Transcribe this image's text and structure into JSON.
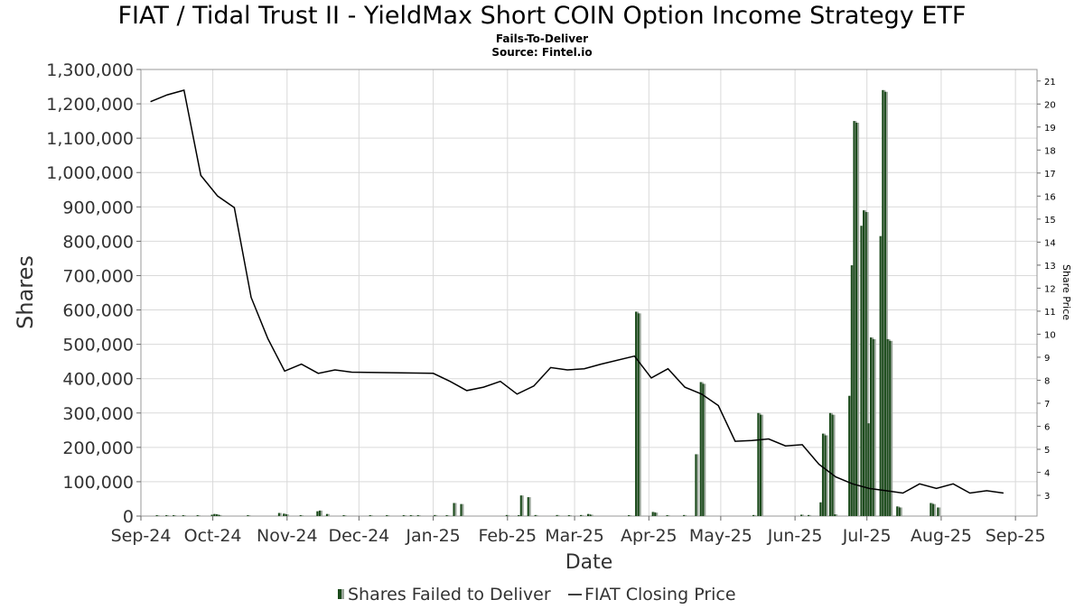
{
  "chart_data": {
    "type": "bar",
    "title": "FIAT / Tidal Trust II - YieldMax Short COIN Option Income Strategy ETF",
    "subtitle": "Fails-To-Deliver",
    "source": "Source: Fintel.io",
    "xlabel": "Date",
    "ylabel": "Shares",
    "y2label": "Share Price",
    "ylim": [
      0,
      1300000
    ],
    "y2lim": [
      2.1,
      21.5
    ],
    "xlim": [
      "2024-09-01",
      "2025-09-10"
    ],
    "x_ticks": [
      {
        "date": "2024-09-01",
        "label": "Sep-24"
      },
      {
        "date": "2024-10-01",
        "label": "Oct-24"
      },
      {
        "date": "2024-11-01",
        "label": "Nov-24"
      },
      {
        "date": "2024-12-01",
        "label": "Dec-24"
      },
      {
        "date": "2025-01-01",
        "label": "Jan-25"
      },
      {
        "date": "2025-02-01",
        "label": "Feb-25"
      },
      {
        "date": "2025-03-01",
        "label": "Mar-25"
      },
      {
        "date": "2025-04-01",
        "label": "Apr-25"
      },
      {
        "date": "2025-05-01",
        "label": "May-25"
      },
      {
        "date": "2025-06-01",
        "label": "Jun-25"
      },
      {
        "date": "2025-07-01",
        "label": "Jul-25"
      },
      {
        "date": "2025-08-01",
        "label": "Aug-25"
      },
      {
        "date": "2025-09-01",
        "label": "Sep-25"
      }
    ],
    "y_ticks": [
      {
        "value": 0,
        "label": "0"
      },
      {
        "value": 100000,
        "label": "100,000"
      },
      {
        "value": 200000,
        "label": "200,000"
      },
      {
        "value": 300000,
        "label": "300,000"
      },
      {
        "value": 400000,
        "label": "400,000"
      },
      {
        "value": 500000,
        "label": "500,000"
      },
      {
        "value": 600000,
        "label": "600,000"
      },
      {
        "value": 700000,
        "label": "700,000"
      },
      {
        "value": 800000,
        "label": "800,000"
      },
      {
        "value": 900000,
        "label": "900,000"
      },
      {
        "value": 1000000,
        "label": "1,000,000"
      },
      {
        "value": 1100000,
        "label": "1,100,000"
      },
      {
        "value": 1200000,
        "label": "1,200,000"
      },
      {
        "value": 1300000,
        "label": "1,300,000"
      }
    ],
    "y2_ticks": [
      {
        "value": 3,
        "label": "3"
      },
      {
        "value": 4,
        "label": "4"
      },
      {
        "value": 5,
        "label": "5"
      },
      {
        "value": 6,
        "label": "6"
      },
      {
        "value": 7,
        "label": "7"
      },
      {
        "value": 8,
        "label": "8"
      },
      {
        "value": 9,
        "label": "9"
      },
      {
        "value": 10,
        "label": "10"
      },
      {
        "value": 11,
        "label": "11"
      },
      {
        "value": 12,
        "label": "12"
      },
      {
        "value": 13,
        "label": "13"
      },
      {
        "value": 14,
        "label": "14"
      },
      {
        "value": 15,
        "label": "15"
      },
      {
        "value": 16,
        "label": "16"
      },
      {
        "value": 17,
        "label": "17"
      },
      {
        "value": 18,
        "label": "18"
      },
      {
        "value": 19,
        "label": "19"
      },
      {
        "value": 20,
        "label": "20"
      },
      {
        "value": 21,
        "label": "21"
      }
    ],
    "grid": true,
    "legend_position": "bottom",
    "colors": {
      "bars": "#1a4a1a",
      "bar_shadow": "#9aa59a",
      "price_line": "#000000",
      "grid": "#d9d9d9"
    },
    "series": [
      {
        "name": "Shares Failed to Deliver",
        "type": "bar",
        "points": [
          [
            "2024-09-08",
            2000
          ],
          [
            "2024-09-12",
            1500
          ],
          [
            "2024-09-15",
            1500
          ],
          [
            "2024-09-19",
            1500
          ],
          [
            "2024-09-25",
            1000
          ],
          [
            "2024-10-01",
            4000
          ],
          [
            "2024-10-02",
            6000
          ],
          [
            "2024-10-03",
            5000
          ],
          [
            "2024-10-04",
            3000
          ],
          [
            "2024-10-16",
            2000
          ],
          [
            "2024-10-29",
            9000
          ],
          [
            "2024-10-31",
            7000
          ],
          [
            "2024-11-01",
            5000
          ],
          [
            "2024-11-07",
            2000
          ],
          [
            "2024-11-14",
            14000
          ],
          [
            "2024-11-15",
            16000
          ],
          [
            "2024-11-18",
            6000
          ],
          [
            "2024-11-25",
            2000
          ],
          [
            "2024-12-06",
            2000
          ],
          [
            "2024-12-13",
            2000
          ],
          [
            "2024-12-20",
            2000
          ],
          [
            "2024-12-23",
            1500
          ],
          [
            "2024-12-26",
            2000
          ],
          [
            "2025-01-02",
            3000
          ],
          [
            "2025-01-07",
            2000
          ],
          [
            "2025-01-10",
            38000
          ],
          [
            "2025-01-13",
            35000
          ],
          [
            "2025-02-01",
            3000
          ],
          [
            "2025-02-06",
            2000
          ],
          [
            "2025-02-07",
            60000
          ],
          [
            "2025-02-10",
            55000
          ],
          [
            "2025-02-13",
            3000
          ],
          [
            "2025-02-22",
            3000
          ],
          [
            "2025-02-27",
            2000
          ],
          [
            "2025-03-04",
            3000
          ],
          [
            "2025-03-07",
            6000
          ],
          [
            "2025-03-08",
            4000
          ],
          [
            "2025-03-24",
            2000
          ],
          [
            "2025-03-27",
            595000
          ],
          [
            "2025-03-28",
            590000
          ],
          [
            "2025-04-03",
            12000
          ],
          [
            "2025-04-04",
            10000
          ],
          [
            "2025-04-09",
            2000
          ],
          [
            "2025-04-16",
            3000
          ],
          [
            "2025-04-21",
            180000
          ],
          [
            "2025-04-23",
            390000
          ],
          [
            "2025-04-24",
            385000
          ],
          [
            "2025-05-15",
            3000
          ],
          [
            "2025-05-17",
            300000
          ],
          [
            "2025-05-18",
            295000
          ],
          [
            "2025-06-04",
            4000
          ],
          [
            "2025-06-07",
            3000
          ],
          [
            "2025-06-12",
            40000
          ],
          [
            "2025-06-13",
            240000
          ],
          [
            "2025-06-14",
            235000
          ],
          [
            "2025-06-16",
            300000
          ],
          [
            "2025-06-17",
            295000
          ],
          [
            "2025-06-18",
            5000
          ],
          [
            "2025-06-24",
            350000
          ],
          [
            "2025-06-25",
            730000
          ],
          [
            "2025-06-26",
            1150000
          ],
          [
            "2025-06-27",
            1145000
          ],
          [
            "2025-06-29",
            845000
          ],
          [
            "2025-06-30",
            890000
          ],
          [
            "2025-07-01",
            885000
          ],
          [
            "2025-07-02",
            270000
          ],
          [
            "2025-07-03",
            520000
          ],
          [
            "2025-07-04",
            515000
          ],
          [
            "2025-07-07",
            815000
          ],
          [
            "2025-07-08",
            1240000
          ],
          [
            "2025-07-09",
            1235000
          ],
          [
            "2025-07-10",
            515000
          ],
          [
            "2025-07-11",
            510000
          ],
          [
            "2025-07-14",
            28000
          ],
          [
            "2025-07-15",
            25000
          ],
          [
            "2025-07-28",
            38000
          ],
          [
            "2025-07-29",
            35000
          ],
          [
            "2025-07-31",
            25000
          ]
        ]
      },
      {
        "name": "FIAT Closing Price",
        "type": "line",
        "points": [
          [
            "2024-09-05",
            20.1
          ],
          [
            "2024-09-12",
            20.4
          ],
          [
            "2024-09-19",
            20.6
          ],
          [
            "2024-09-26",
            16.9
          ],
          [
            "2024-10-03",
            16.0
          ],
          [
            "2024-10-10",
            15.5
          ],
          [
            "2024-10-17",
            11.6
          ],
          [
            "2024-10-24",
            9.8
          ],
          [
            "2024-10-31",
            8.4
          ],
          [
            "2024-11-07",
            8.7
          ],
          [
            "2024-11-14",
            8.3
          ],
          [
            "2024-11-21",
            8.45
          ],
          [
            "2024-11-28",
            8.35
          ],
          [
            "2025-01-01",
            8.3
          ],
          [
            "2025-01-08",
            7.95
          ],
          [
            "2025-01-15",
            7.55
          ],
          [
            "2025-01-22",
            7.7
          ],
          [
            "2025-01-29",
            7.95
          ],
          [
            "2025-02-05",
            7.4
          ],
          [
            "2025-02-12",
            7.75
          ],
          [
            "2025-02-19",
            8.55
          ],
          [
            "2025-02-26",
            8.45
          ],
          [
            "2025-03-05",
            8.5
          ],
          [
            "2025-03-12",
            8.7
          ],
          [
            "2025-03-26",
            9.05
          ],
          [
            "2025-04-02",
            8.1
          ],
          [
            "2025-04-09",
            8.5
          ],
          [
            "2025-04-16",
            7.7
          ],
          [
            "2025-04-23",
            7.4
          ],
          [
            "2025-04-30",
            6.9
          ],
          [
            "2025-05-07",
            5.35
          ],
          [
            "2025-05-14",
            5.38
          ],
          [
            "2025-05-21",
            5.45
          ],
          [
            "2025-05-28",
            5.15
          ],
          [
            "2025-06-04",
            5.2
          ],
          [
            "2025-06-11",
            4.35
          ],
          [
            "2025-06-18",
            3.8
          ],
          [
            "2025-06-25",
            3.5
          ],
          [
            "2025-07-02",
            3.3
          ],
          [
            "2025-07-09",
            3.2
          ],
          [
            "2025-07-16",
            3.1
          ],
          [
            "2025-07-23",
            3.5
          ],
          [
            "2025-07-30",
            3.3
          ],
          [
            "2025-08-06",
            3.5
          ],
          [
            "2025-08-13",
            3.1
          ],
          [
            "2025-08-20",
            3.2
          ],
          [
            "2025-08-27",
            3.1
          ]
        ]
      }
    ]
  }
}
